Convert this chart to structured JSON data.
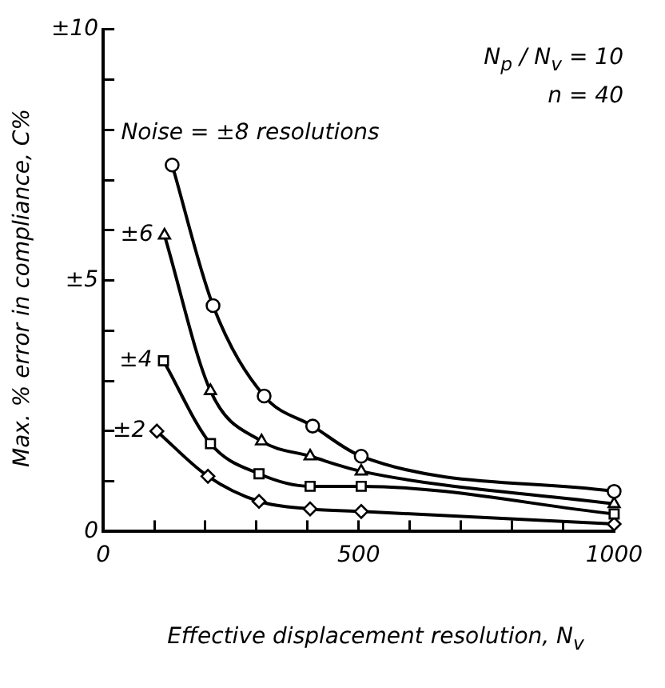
{
  "chart_data": {
    "type": "line",
    "xlabel": "Effective displacement resolution, N$_{v}$",
    "ylabel": "Max. % error in compliance, C%",
    "annotations": [
      "N$_{p}$ / N$_{v}$ = 10",
      "n = 40"
    ],
    "xlim": [
      0,
      1000
    ],
    "xticks": [
      0,
      {
        "value": 100,
        "label": null
      },
      {
        "value": 200,
        "label": null
      },
      {
        "value": 300,
        "label": null
      },
      {
        "value": 400,
        "label": null
      },
      500,
      {
        "value": 600,
        "label": null
      },
      {
        "value": 700,
        "label": null
      },
      {
        "value": 800,
        "label": null
      },
      {
        "value": 900,
        "label": null
      },
      1000
    ],
    "ylim": [
      0,
      10
    ],
    "yticks": [
      0,
      {
        "value": 1,
        "label": null
      },
      {
        "value": 2,
        "label": null
      },
      {
        "value": 3,
        "label": null
      },
      {
        "value": 4,
        "label": null
      },
      {
        "value": 5,
        "label": "±5"
      },
      {
        "value": 6,
        "label": null
      },
      {
        "value": 7,
        "label": null
      },
      {
        "value": 8,
        "label": null
      },
      {
        "value": 9,
        "label": null
      },
      {
        "value": 10,
        "label": "±10"
      }
    ],
    "grid": false,
    "legend": false,
    "line_style": "solid",
    "series": [
      {
        "name": "Noise = ±8 resolutions",
        "color": "#000000",
        "marker": "circle",
        "x": [
          135,
          215,
          315,
          410,
          505,
          1000
        ],
        "values": [
          7.3,
          4.5,
          2.7,
          2.1,
          1.5,
          0.8
        ]
      },
      {
        "name": "±6",
        "color": "#000000",
        "marker": "triangle",
        "x": [
          120,
          210,
          310,
          405,
          505,
          1000
        ],
        "values": [
          5.9,
          2.8,
          1.8,
          1.5,
          1.2,
          0.55
        ]
      },
      {
        "name": "±4",
        "color": "#000000",
        "marker": "square",
        "x": [
          118,
          210,
          305,
          405,
          505,
          1000
        ],
        "values": [
          3.4,
          1.75,
          1.15,
          0.9,
          0.9,
          0.35
        ]
      },
      {
        "name": "±2",
        "color": "#000000",
        "marker": "diamond",
        "x": [
          105,
          205,
          305,
          405,
          505,
          1000
        ],
        "values": [
          2.0,
          1.1,
          0.6,
          0.45,
          0.4,
          0.15
        ]
      }
    ]
  }
}
